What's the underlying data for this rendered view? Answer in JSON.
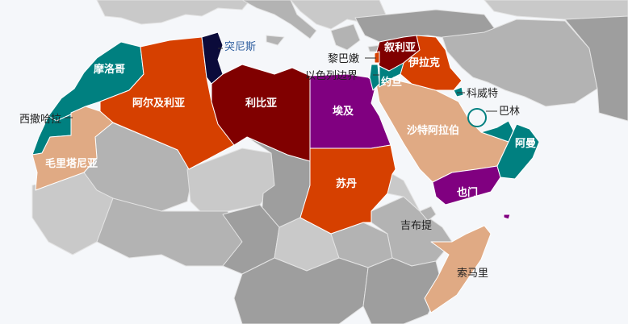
{
  "palette": {
    "sea": "#f5f7fa",
    "bg_light": "#c9c9c9",
    "bg_mid": "#b3b3b3",
    "bg_dark": "#9e9e9e",
    "maroon": "#800000",
    "orange_red": "#d64000",
    "teal": "#008080",
    "purple": "#800080",
    "tan": "#e0aa84",
    "navy": "#0b0b3a"
  },
  "countries": [
    {
      "id": "morocco",
      "label": "摩洛哥",
      "color": "#008080"
    },
    {
      "id": "western-sahara",
      "label": "西撒哈拉",
      "color": "#008080"
    },
    {
      "id": "mauritania",
      "label": "毛里塔尼亚",
      "color": "#e0aa84"
    },
    {
      "id": "algeria",
      "label": "阿尔及利亚",
      "color": "#d64000"
    },
    {
      "id": "tunisia",
      "label": "突尼斯",
      "color": "#0b0b3a"
    },
    {
      "id": "libya",
      "label": "利比亚",
      "color": "#800000"
    },
    {
      "id": "egypt",
      "label": "埃及",
      "color": "#800080"
    },
    {
      "id": "sudan",
      "label": "苏丹",
      "color": "#d64000"
    },
    {
      "id": "saudi-arabia",
      "label": "沙特阿拉伯",
      "color": "#e0aa84"
    },
    {
      "id": "yemen",
      "label": "也门",
      "color": "#800080"
    },
    {
      "id": "oman",
      "label": "阿曼",
      "color": "#008080"
    },
    {
      "id": "syria",
      "label": "叙利亚",
      "color": "#800000"
    },
    {
      "id": "iraq",
      "label": "伊拉克",
      "color": "#d64000"
    },
    {
      "id": "jordan",
      "label": "约旦",
      "color": "#008080"
    },
    {
      "id": "lebanon",
      "label": "黎巴嫩",
      "color": "#d64000"
    },
    {
      "id": "israel-border",
      "label": "以色列边界",
      "color": "#008080"
    },
    {
      "id": "kuwait",
      "label": "科威特",
      "color": "#008080"
    },
    {
      "id": "bahrain",
      "label": "巴林",
      "color": "#008080"
    },
    {
      "id": "djibouti",
      "label": "吉布提",
      "color": "#b3b3b3"
    },
    {
      "id": "somalia",
      "label": "索马里",
      "color": "#e0aa84"
    }
  ]
}
